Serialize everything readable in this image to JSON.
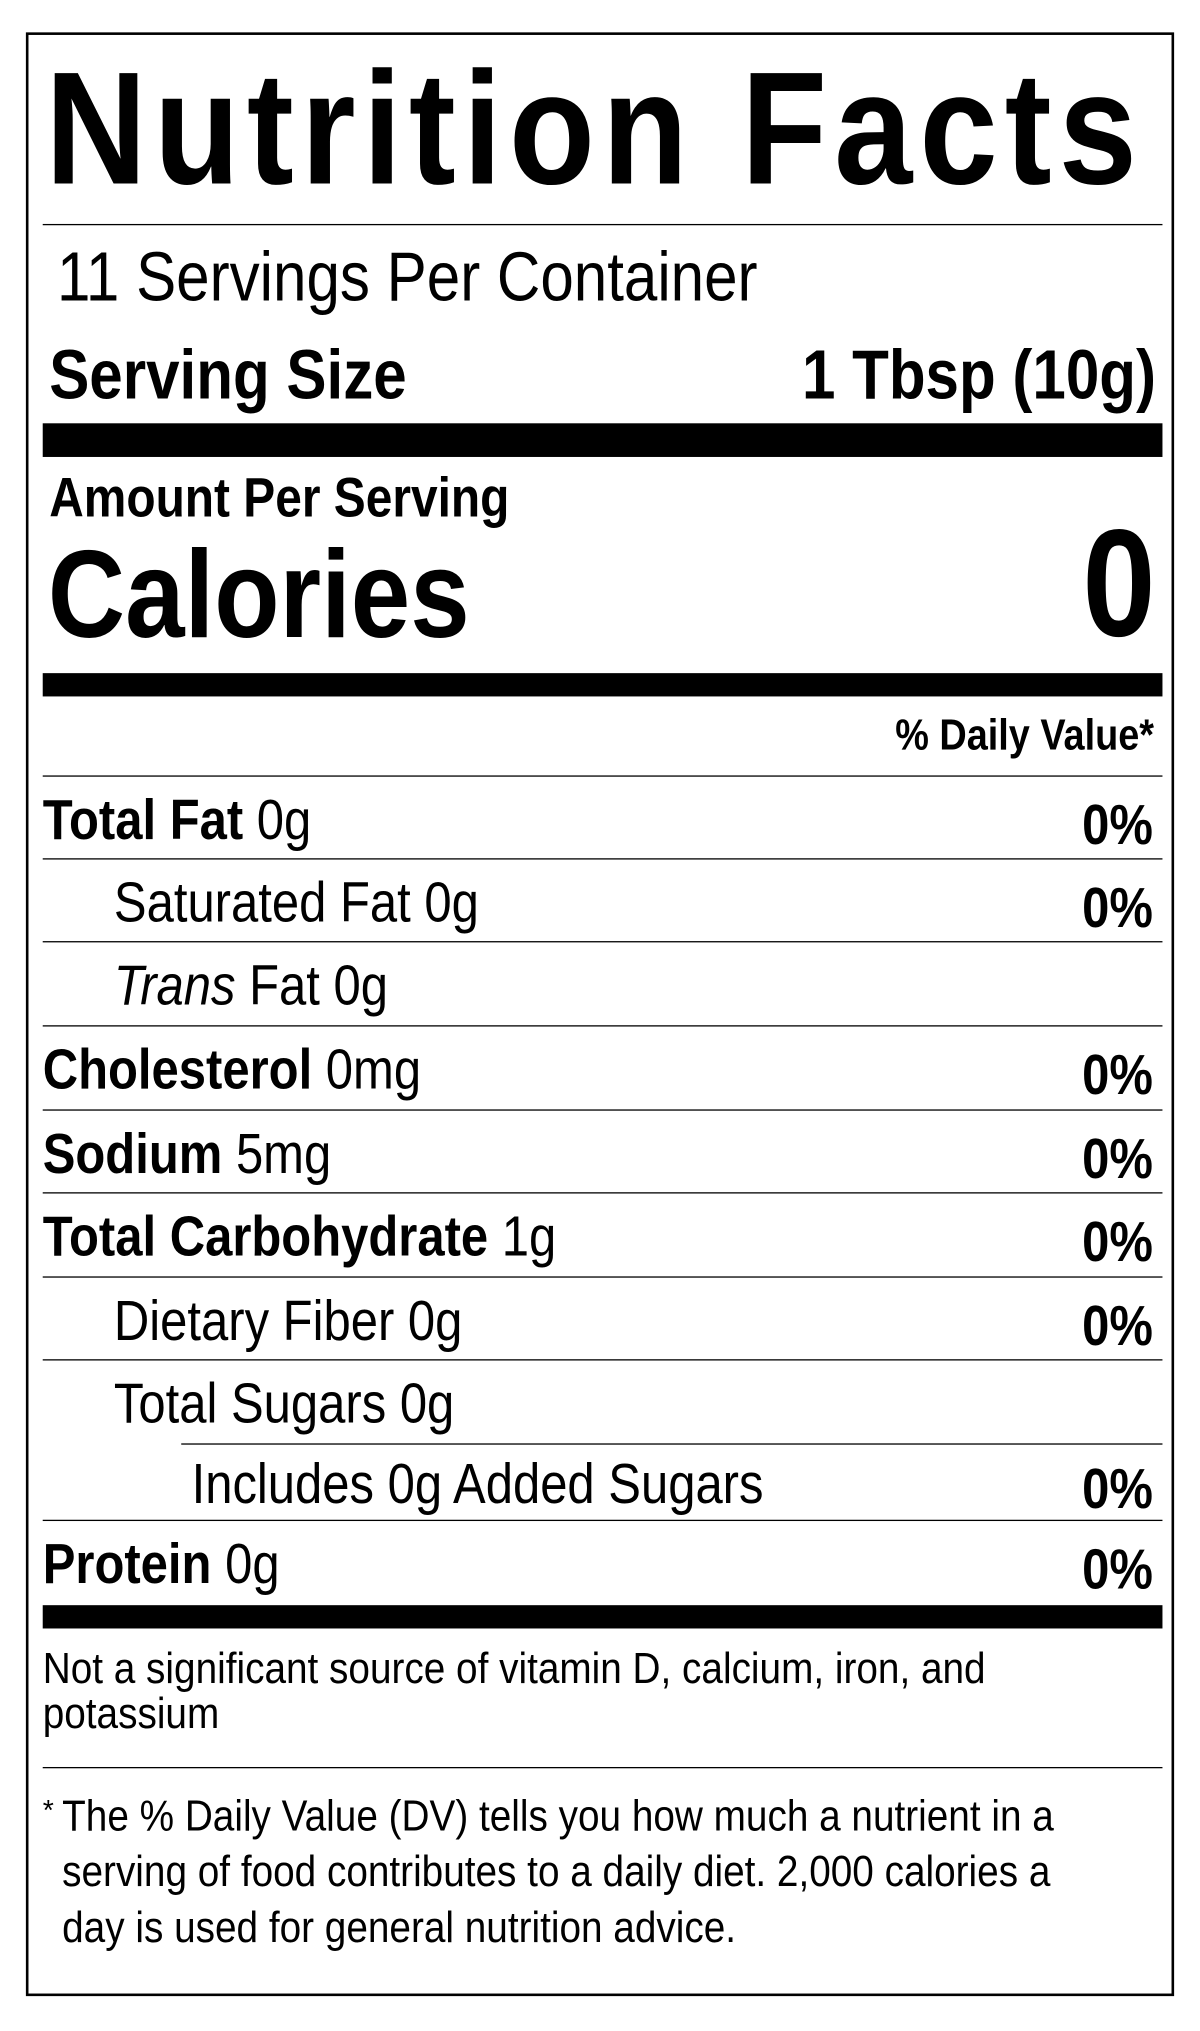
{
  "title": "Nutrition Facts",
  "servings_per_container": "11 Servings Per Container",
  "serving_size": {
    "label": "Serving Size",
    "value": "1 Tbsp (10g)"
  },
  "amount_per_serving": "Amount Per Serving",
  "calories": {
    "label": "Calories",
    "value": "0"
  },
  "daily_value_header": "% Daily Value*",
  "nutrients": [
    {
      "name": "Total Fat",
      "amount": "0g",
      "dv": "0%"
    },
    {
      "name": "Saturated Fat",
      "amount": "0g",
      "dv": "0%"
    },
    {
      "name": "Trans",
      "name_suffix": "Fat",
      "amount": "0g",
      "dv": ""
    },
    {
      "name": "Cholesterol",
      "amount": "0mg",
      "dv": "0%"
    },
    {
      "name": "Sodium",
      "amount": "5mg",
      "dv": "0%"
    },
    {
      "name": "Total Carbohydrate",
      "amount": "1g",
      "dv": "0%"
    },
    {
      "name": "Dietary Fiber",
      "amount": "0g",
      "dv": "0%"
    },
    {
      "name": "Total Sugars",
      "amount": "0g",
      "dv": ""
    },
    {
      "name": "Includes 0g Added Sugars",
      "amount": "",
      "dv": "0%"
    },
    {
      "name": "Protein",
      "amount": "0g",
      "dv": "0%"
    }
  ],
  "not_significant": "Not a significant source of vitamin D, calcium, iron, and potassium",
  "footnote": {
    "marker": "*",
    "text": "The % Daily Value (DV) tells you how much a nutrient in a serving of food contributes to a daily diet. 2,000 calories a day is used for general nutrition advice."
  }
}
